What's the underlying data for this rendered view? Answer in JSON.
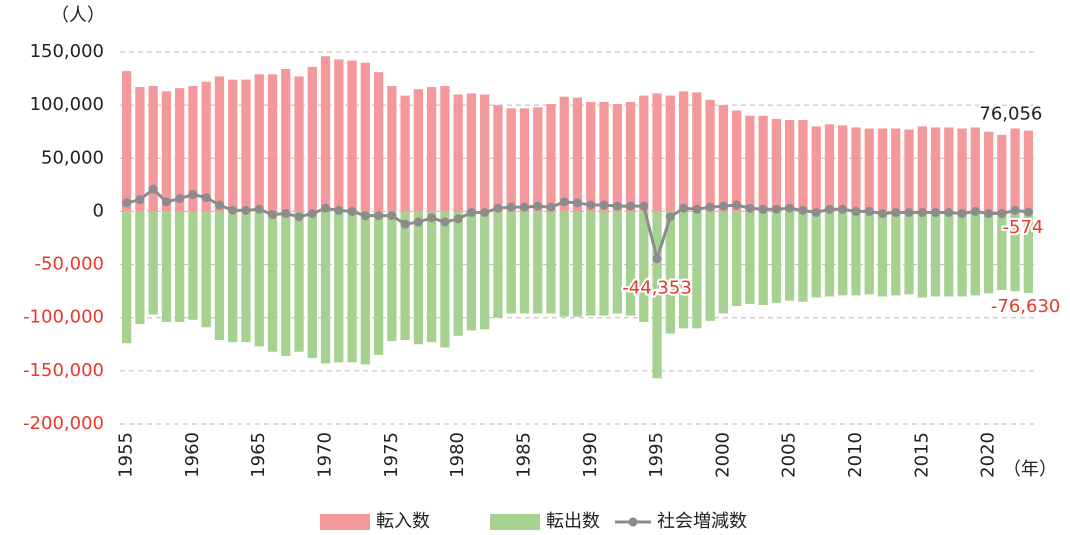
{
  "chart_data": {
    "type": "bar",
    "stacked": true,
    "ylabel": "（人）",
    "xlabel": "（年）",
    "x": [
      1955,
      1956,
      1957,
      1958,
      1959,
      1960,
      1961,
      1962,
      1963,
      1964,
      1965,
      1966,
      1967,
      1968,
      1969,
      1970,
      1971,
      1972,
      1973,
      1974,
      1975,
      1976,
      1977,
      1978,
      1979,
      1980,
      1981,
      1982,
      1983,
      1984,
      1985,
      1986,
      1987,
      1988,
      1989,
      1990,
      1991,
      1992,
      1993,
      1994,
      1995,
      1996,
      1997,
      1998,
      1999,
      2000,
      2001,
      2002,
      2003,
      2004,
      2005,
      2006,
      2007,
      2008,
      2009,
      2010,
      2011,
      2012,
      2013,
      2014,
      2015,
      2016,
      2017,
      2018,
      2019,
      2020,
      2021,
      2022,
      2023
    ],
    "xlim": [
      1954.5,
      2023.5
    ],
    "xticks": [
      1955,
      1960,
      1965,
      1970,
      1975,
      1980,
      1985,
      1990,
      1995,
      2000,
      2005,
      2010,
      2015,
      2020
    ],
    "ylim": [
      -200000,
      150000
    ],
    "yticks": [
      {
        "value": -200000,
        "label": "-200,000"
      },
      {
        "value": -150000,
        "label": "-150,000"
      },
      {
        "value": -100000,
        "label": "-100,000"
      },
      {
        "value": -50000,
        "label": "-50,000"
      },
      0,
      {
        "value": 50000,
        "label": "50,000"
      },
      {
        "value": 100000,
        "label": "100,000"
      },
      {
        "value": 150000,
        "label": "150,000"
      }
    ],
    "grid": true,
    "legend": "bottom",
    "series": [
      {
        "name": "転入数",
        "type": "bar",
        "color": "#f4999b",
        "values": [
          132000,
          117000,
          118000,
          113000,
          116000,
          118000,
          122000,
          127000,
          124000,
          124000,
          129000,
          129000,
          134000,
          127000,
          136000,
          146000,
          143000,
          142000,
          140000,
          131000,
          118000,
          109000,
          115000,
          117000,
          118000,
          110000,
          111000,
          110000,
          100000,
          97000,
          97000,
          98000,
          101000,
          108000,
          107000,
          103000,
          103000,
          101000,
          103000,
          109000,
          111000,
          109000,
          113000,
          112000,
          105000,
          100000,
          95000,
          90000,
          90000,
          87000,
          86000,
          86000,
          80000,
          82000,
          81000,
          79000,
          78000,
          78000,
          78000,
          77000,
          80000,
          79000,
          79000,
          78000,
          79000,
          75000,
          72000,
          78000,
          76056
        ],
        "value_labels": [
          null,
          null,
          null,
          null,
          null,
          null,
          null,
          null,
          null,
          null,
          null,
          null,
          null,
          null,
          null,
          null,
          null,
          null,
          null,
          null,
          null,
          null,
          null,
          null,
          null,
          null,
          null,
          null,
          null,
          null,
          null,
          null,
          null,
          null,
          null,
          null,
          null,
          null,
          null,
          null,
          null,
          null,
          null,
          null,
          null,
          null,
          null,
          null,
          null,
          null,
          null,
          null,
          null,
          null,
          null,
          null,
          null,
          null,
          null,
          null,
          null,
          null,
          null,
          null,
          null,
          null,
          null,
          null,
          "76,056"
        ]
      },
      {
        "name": "転出数",
        "type": "bar",
        "color": "#a6d191",
        "values": [
          -124000,
          -106000,
          -97000,
          -104000,
          -104000,
          -102000,
          -109000,
          -121000,
          -123000,
          -123000,
          -127000,
          -132000,
          -136000,
          -132000,
          -138000,
          -143000,
          -142000,
          -142000,
          -144000,
          -135000,
          -122000,
          -121000,
          -125000,
          -123000,
          -128000,
          -117000,
          -112000,
          -111000,
          -100000,
          -96000,
          -96000,
          -96000,
          -96000,
          -99000,
          -99000,
          -98000,
          -98000,
          -96000,
          -98000,
          -104000,
          -157000,
          -115000,
          -110000,
          -110000,
          -103000,
          -96000,
          -89000,
          -87000,
          -88000,
          -86000,
          -84000,
          -85000,
          -81000,
          -80000,
          -79000,
          -79000,
          -78000,
          -80000,
          -79000,
          -78000,
          -81000,
          -80000,
          -80000,
          -80000,
          -79000,
          -77000,
          -74000,
          -75000,
          -76630
        ],
        "value_labels": [
          null,
          null,
          null,
          null,
          null,
          null,
          null,
          null,
          null,
          null,
          null,
          null,
          null,
          null,
          null,
          null,
          null,
          null,
          null,
          null,
          null,
          null,
          null,
          null,
          null,
          null,
          null,
          null,
          null,
          null,
          null,
          null,
          null,
          null,
          null,
          null,
          null,
          null,
          null,
          null,
          null,
          null,
          null,
          null,
          null,
          null,
          null,
          null,
          null,
          null,
          null,
          null,
          null,
          null,
          null,
          null,
          null,
          null,
          null,
          null,
          null,
          null,
          null,
          null,
          null,
          null,
          null,
          null,
          "-76,630"
        ]
      },
      {
        "name": "社会増減数",
        "type": "line",
        "color": "#8c8c8c",
        "values": [
          8000,
          11000,
          21000,
          9000,
          12000,
          16000,
          13000,
          6000,
          1000,
          1000,
          2000,
          -3000,
          -2000,
          -5000,
          -2000,
          3000,
          1000,
          0,
          -4000,
          -4000,
          -4000,
          -12000,
          -10000,
          -6000,
          -10000,
          -7000,
          -1000,
          -1000,
          3000,
          4000,
          4000,
          5000,
          4000,
          9000,
          8000,
          6000,
          6000,
          5000,
          5000,
          5000,
          -44353,
          -5000,
          3000,
          2000,
          4000,
          5000,
          6000,
          3000,
          2000,
          2000,
          3000,
          1000,
          -1000,
          2000,
          2000,
          0,
          0,
          -2000,
          -1000,
          -1000,
          -1000,
          -1000,
          -1000,
          -2000,
          0,
          -2000,
          -2000,
          1000,
          -574
        ],
        "value_labels": [
          null,
          null,
          null,
          null,
          null,
          null,
          null,
          null,
          null,
          null,
          null,
          null,
          null,
          null,
          null,
          null,
          null,
          null,
          null,
          null,
          null,
          null,
          null,
          null,
          null,
          null,
          null,
          null,
          null,
          null,
          null,
          null,
          null,
          null,
          null,
          null,
          null,
          null,
          null,
          null,
          "-44,353",
          null,
          null,
          null,
          null,
          null,
          null,
          null,
          null,
          null,
          null,
          null,
          null,
          null,
          null,
          null,
          null,
          null,
          null,
          null,
          null,
          null,
          null,
          null,
          null,
          null,
          null,
          null,
          "-574"
        ]
      }
    ]
  }
}
